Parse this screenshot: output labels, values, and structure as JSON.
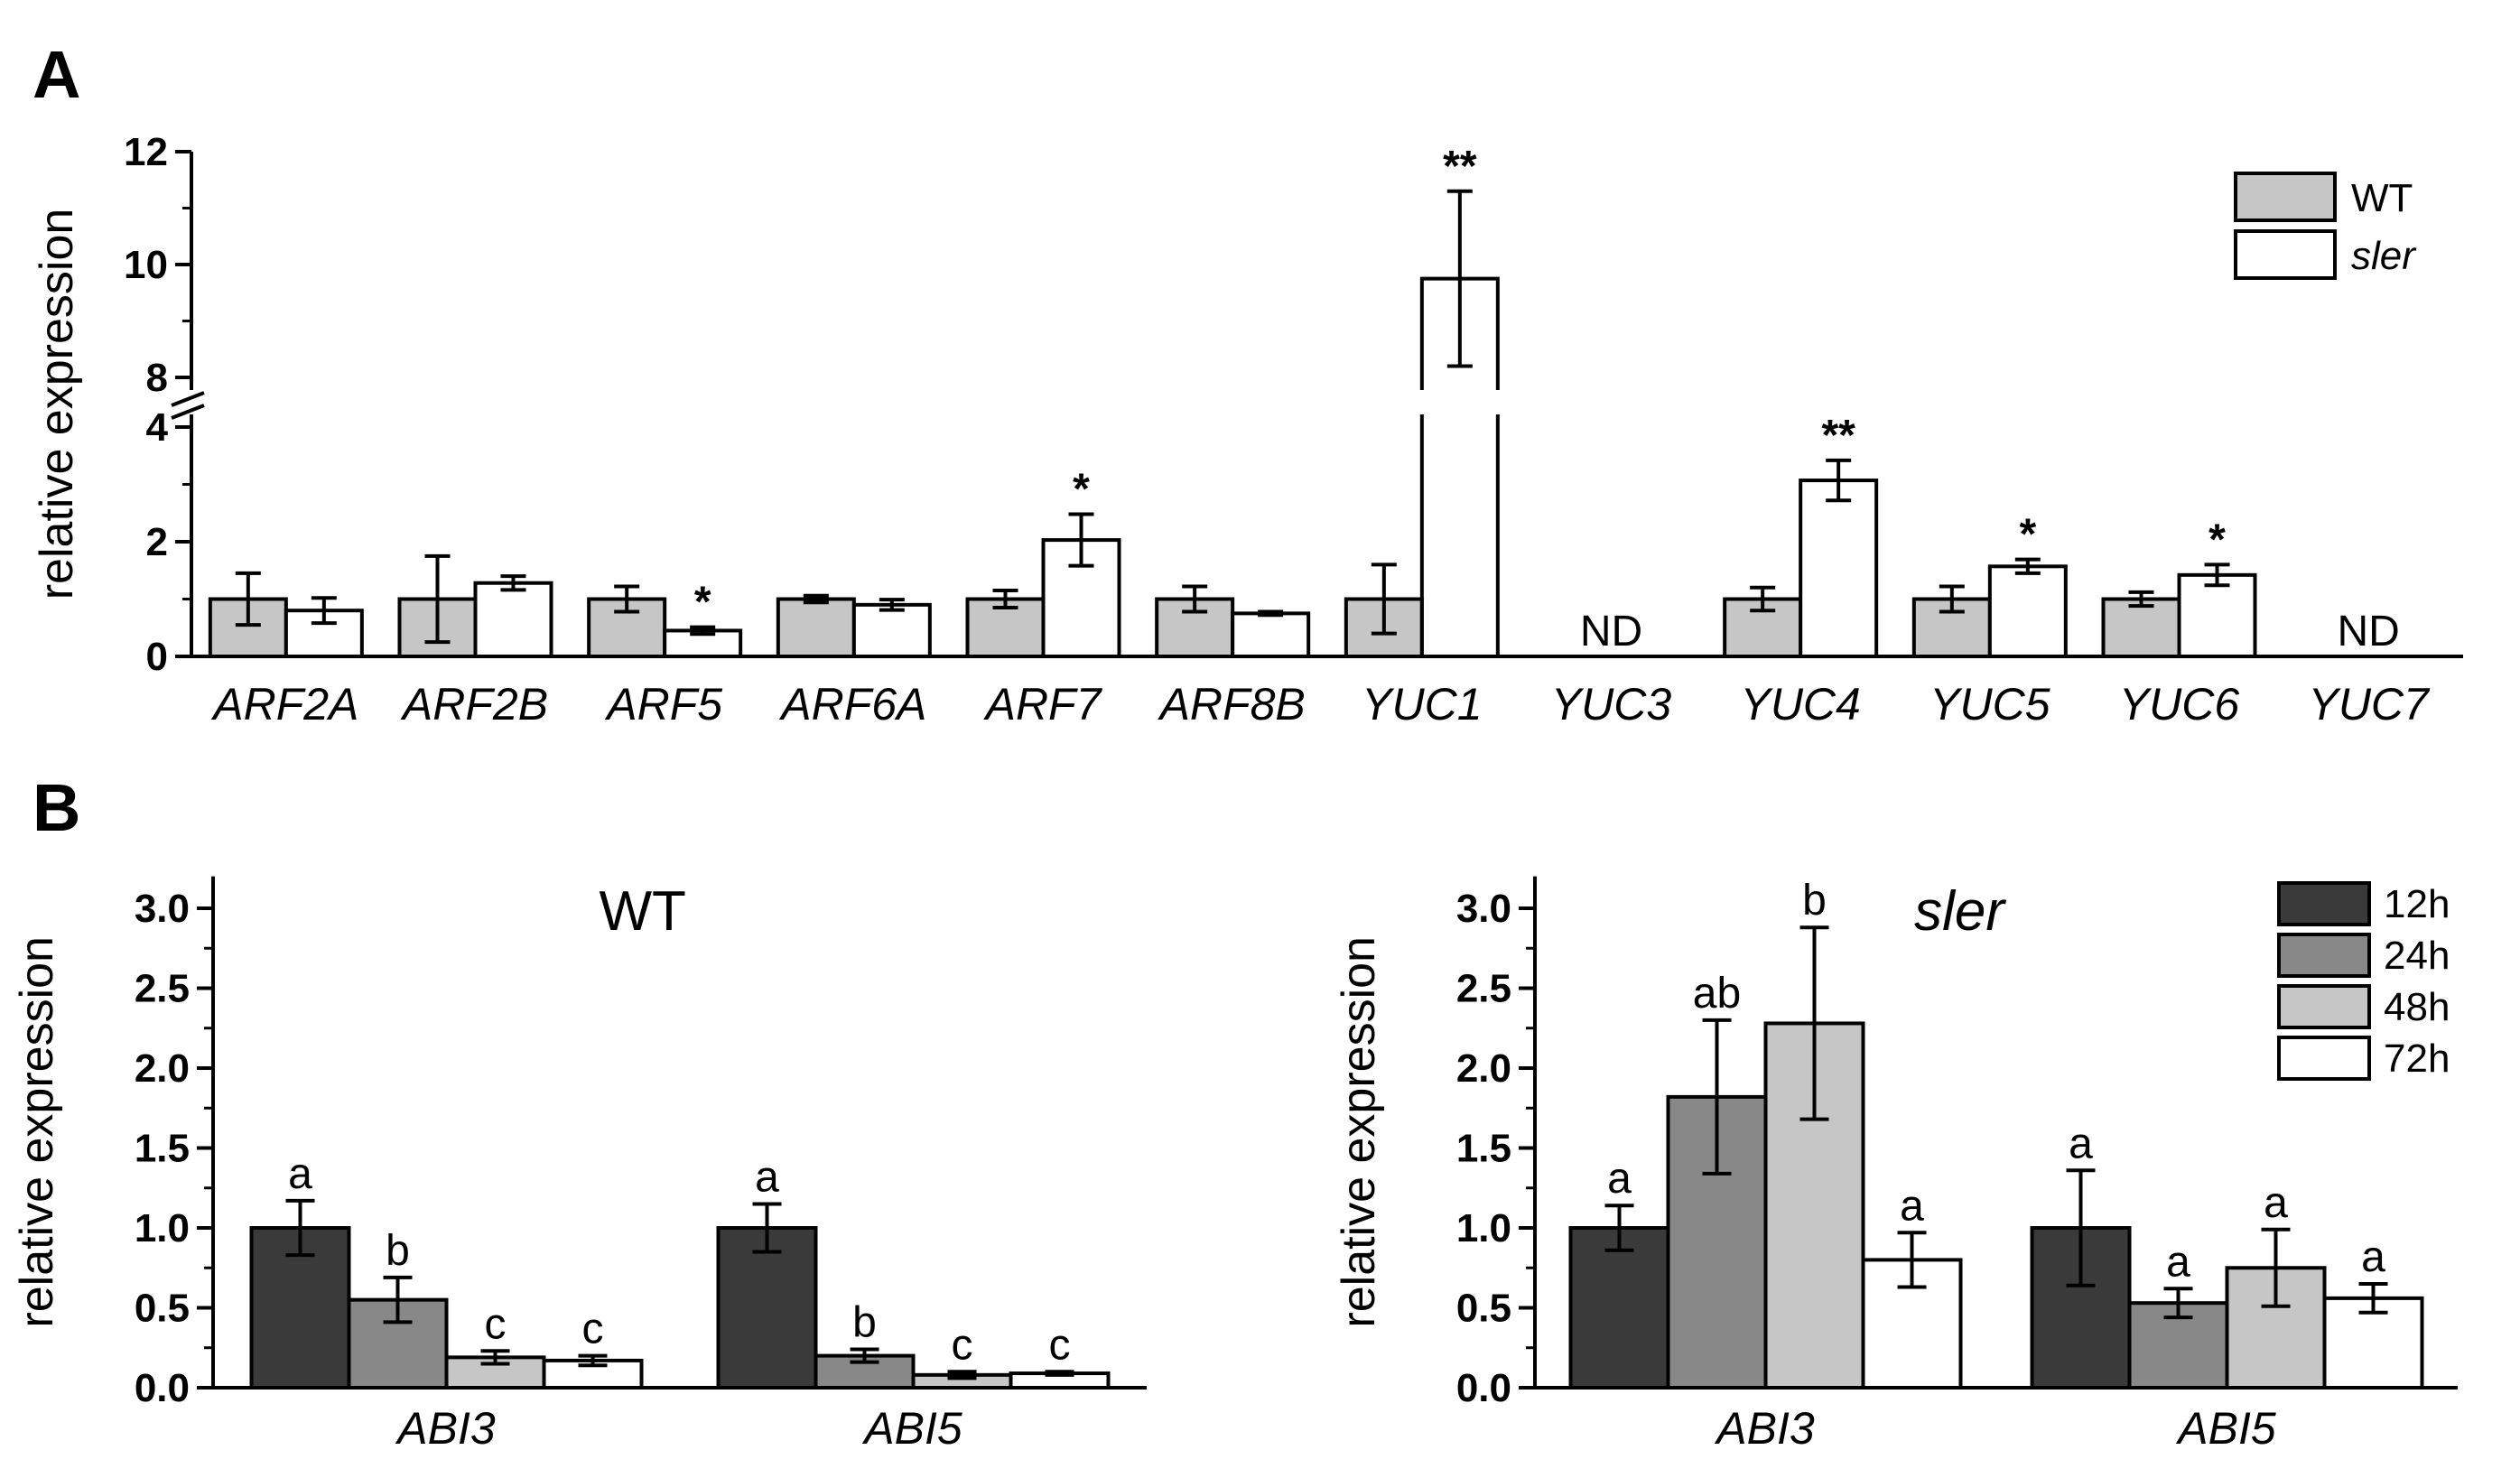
{
  "panels": {
    "a": "A",
    "b": "B"
  },
  "chart_data": [
    {
      "type": "bar",
      "panel": "A",
      "ylabel": "relative expression",
      "ylim": [
        0,
        12
      ],
      "y_axis_break": [
        4,
        8
      ],
      "yticks": [
        "0",
        "2",
        "4",
        "8",
        "10",
        "12"
      ],
      "legend": {
        "placement": "top-right",
        "entries": [
          "WT",
          "sler"
        ]
      },
      "categories": [
        "ARF2A",
        "ARF2B",
        "ARF5",
        "ARF6A",
        "ARF7",
        "ARF8B",
        "YUC1",
        "YUC3",
        "YUC4",
        "YUC5",
        "YUC6",
        "YUC7"
      ],
      "series": [
        {
          "name": "WT",
          "color": "#c6c6c6",
          "values": [
            1.0,
            1.0,
            1.0,
            1.0,
            1.0,
            1.0,
            1.0,
            null,
            1.0,
            1.0,
            1.0,
            null
          ],
          "errors": [
            0.45,
            0.75,
            0.22,
            0.06,
            0.15,
            0.22,
            0.6,
            null,
            0.2,
            0.22,
            0.12,
            null
          ]
        },
        {
          "name": "sler",
          "color": "#ffffff",
          "values": [
            0.8,
            1.28,
            0.45,
            0.9,
            2.03,
            0.75,
            9.75,
            null,
            3.07,
            1.57,
            1.42,
            null
          ],
          "errors": [
            0.22,
            0.12,
            0.06,
            0.09,
            0.45,
            0.03,
            1.55,
            null,
            0.35,
            0.12,
            0.18,
            null
          ]
        }
      ],
      "annotations": [
        {
          "category": "ARF5",
          "text": "*"
        },
        {
          "category": "ARF7",
          "text": "*"
        },
        {
          "category": "YUC1",
          "text": "**"
        },
        {
          "category": "YUC4",
          "text": "**"
        },
        {
          "category": "YUC5",
          "text": "*"
        },
        {
          "category": "YUC6",
          "text": "*"
        }
      ],
      "not_detected": [
        {
          "category": "YUC3",
          "text": "ND"
        },
        {
          "category": "YUC7",
          "text": "ND"
        }
      ]
    },
    {
      "type": "bar",
      "panel": "B",
      "title": "WT",
      "ylabel": "relative expression",
      "ylim": [
        0,
        3.2
      ],
      "yticks": [
        "0.0",
        "0.5",
        "1.0",
        "1.5",
        "2.0",
        "2.5",
        "3.0"
      ],
      "categories": [
        "ABI3",
        "ABI5"
      ],
      "series": [
        {
          "name": "12h",
          "color": "#3a3a3a",
          "values": [
            1.0,
            1.0
          ],
          "errors": [
            0.17,
            0.15
          ],
          "letters": [
            "a",
            "a"
          ]
        },
        {
          "name": "24h",
          "color": "#888888",
          "values": [
            0.55,
            0.2
          ],
          "errors": [
            0.14,
            0.04
          ],
          "letters": [
            "b",
            "b"
          ]
        },
        {
          "name": "48h",
          "color": "#c6c6c6",
          "values": [
            0.19,
            0.08
          ],
          "errors": [
            0.04,
            0.02
          ],
          "letters": [
            "c",
            "c"
          ]
        },
        {
          "name": "72h",
          "color": "#ffffff",
          "values": [
            0.17,
            0.09
          ],
          "errors": [
            0.03,
            0.01
          ],
          "letters": [
            "c",
            "c"
          ]
        }
      ]
    },
    {
      "type": "bar",
      "panel": "B",
      "title": "sler",
      "ylabel": "relative expression",
      "ylim": [
        0,
        3.2
      ],
      "yticks": [
        "0.0",
        "0.5",
        "1.0",
        "1.5",
        "2.0",
        "2.5",
        "3.0"
      ],
      "legend": {
        "placement": "top-right",
        "entries": [
          "12h",
          "24h",
          "48h",
          "72h"
        ]
      },
      "categories": [
        "ABI3",
        "ABI5"
      ],
      "series": [
        {
          "name": "12h",
          "color": "#3a3a3a",
          "values": [
            1.0,
            1.0
          ],
          "errors": [
            0.14,
            0.36
          ],
          "letters": [
            "a",
            "a"
          ]
        },
        {
          "name": "24h",
          "color": "#888888",
          "values": [
            1.82,
            0.53
          ],
          "errors": [
            0.48,
            0.09
          ],
          "letters": [
            "ab",
            "a"
          ]
        },
        {
          "name": "48h",
          "color": "#c6c6c6",
          "values": [
            2.28,
            0.75
          ],
          "errors": [
            0.6,
            0.24
          ],
          "letters": [
            "b",
            "a"
          ]
        },
        {
          "name": "72h",
          "color": "#ffffff",
          "values": [
            0.8,
            0.56
          ],
          "errors": [
            0.17,
            0.09
          ],
          "letters": [
            "a",
            "a"
          ]
        }
      ]
    }
  ]
}
